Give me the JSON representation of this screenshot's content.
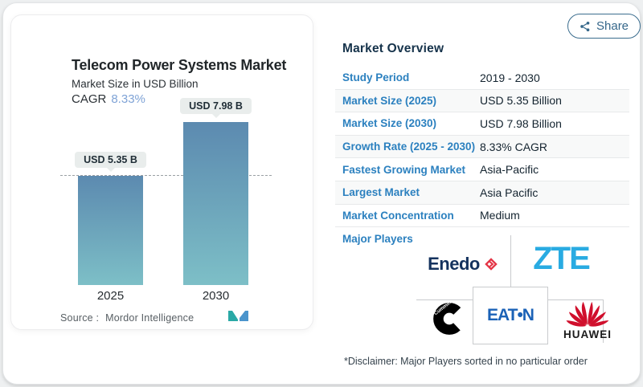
{
  "card": {
    "share_label": "Share"
  },
  "chart_data": {
    "type": "bar",
    "title": "Telecom Power Systems Market",
    "subtitle": "Market Size in USD Billion",
    "cagr_label": "CAGR",
    "cagr_value": "8.33%",
    "categories": [
      "2025",
      "2030"
    ],
    "values": [
      5.35,
      7.98
    ],
    "bar_labels": [
      "USD 5.35 B",
      "USD 7.98 B"
    ],
    "unit": "USD Billion",
    "ylim": [
      0,
      9
    ],
    "dashed_line_at": 5.35,
    "grid": "off",
    "legend_position": "none",
    "source_label": "Source :",
    "source_name": "Mordor Intelligence"
  },
  "overview": {
    "title": "Market Overview",
    "rows": [
      {
        "label": "Study Period",
        "value": "2019 - 2030"
      },
      {
        "label": "Market Size (2025)",
        "value": "USD 5.35 Billion"
      },
      {
        "label": "Market Size (2030)",
        "value": "USD 7.98 Billion"
      },
      {
        "label": "Growth Rate (2025 - 2030)",
        "value": "8.33% CAGR"
      },
      {
        "label": "Fastest Growing Market",
        "value": "Asia-Pacific"
      },
      {
        "label": "Largest Market",
        "value": "Asia Pacific"
      },
      {
        "label": "Market Concentration",
        "value": "Medium"
      }
    ]
  },
  "major_players": {
    "label": "Major Players",
    "players": [
      {
        "name": "Enedo",
        "display": "Enedo"
      },
      {
        "name": "ZTE",
        "display": "ZTE"
      },
      {
        "name": "Cummins",
        "display": "Cummins"
      },
      {
        "name": "Eaton",
        "display": "EAT•N"
      },
      {
        "name": "Huawei",
        "display": "HUAWEI"
      }
    ],
    "disclaimer": "*Disclaimer: Major Players sorted in no particular order"
  },
  "colors": {
    "label_blue": "#2b80bf",
    "heading_navy": "#16334b",
    "cagr_blue": "#7fa3d6",
    "bar_gradient_top": "#5c8ab0",
    "bar_gradient_bottom": "#7dbfc7",
    "zte_blue": "#29abe2",
    "eaton_blue": "#1b62b7",
    "huawei_red": "#d00f2c",
    "enedo_navy": "#14325e",
    "enedo_red": "#e43546",
    "share_blue": "#35678a"
  }
}
